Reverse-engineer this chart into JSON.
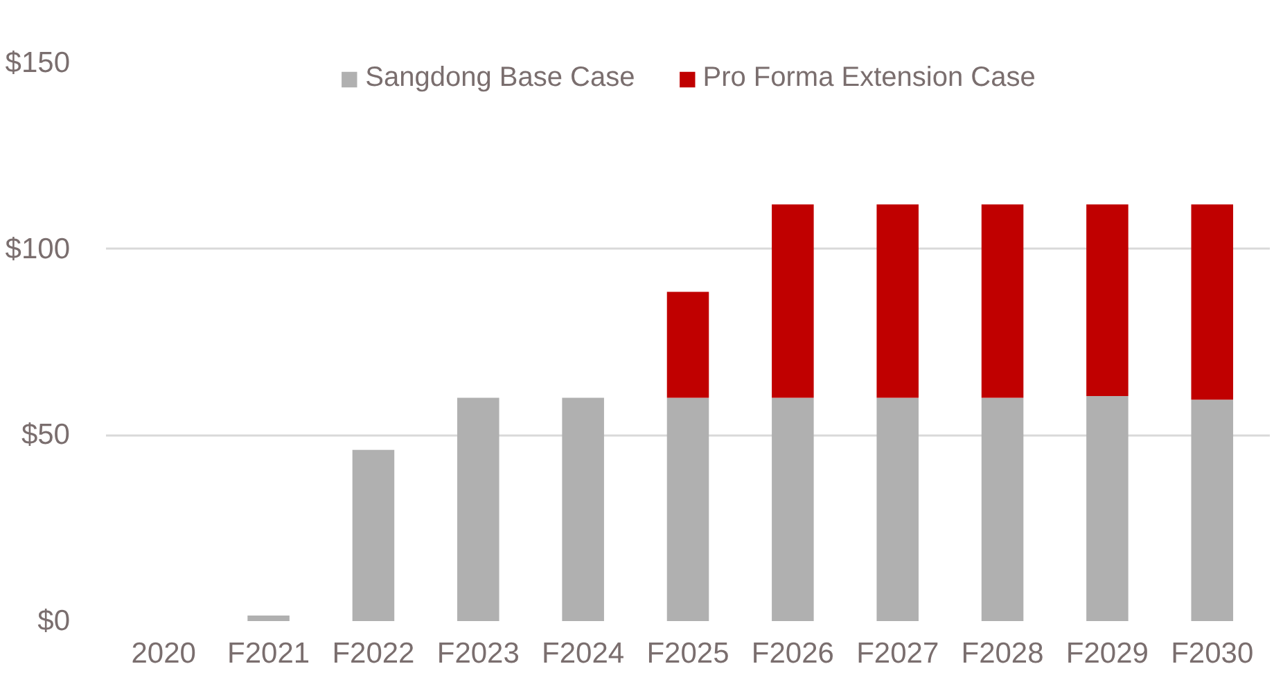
{
  "chart_data": {
    "type": "bar",
    "stacked": true,
    "categories": [
      "2020",
      "F2021",
      "F2022",
      "F2023",
      "F2024",
      "F2025",
      "F2026",
      "F2027",
      "F2028",
      "F2029",
      "F2030"
    ],
    "series": [
      {
        "name": "Sangdong Base Case",
        "color": "#b0b0b0",
        "values": [
          0,
          1.5,
          46,
          60,
          60,
          60,
          60,
          60,
          60,
          60.5,
          59.5
        ]
      },
      {
        "name": "Pro Forma Extension Case",
        "color": "#c00000",
        "values": [
          0,
          0,
          0,
          0,
          0,
          28.5,
          52,
          52,
          52,
          51.5,
          52.5
        ]
      }
    ],
    "ylim": [
      0,
      150
    ],
    "yticks": [
      {
        "value": 0,
        "label": "$0"
      },
      {
        "value": 50,
        "label": "$50"
      },
      {
        "value": 100,
        "label": "$100"
      },
      {
        "value": 150,
        "label": "$150"
      }
    ],
    "grid": "y",
    "legend": "top"
  }
}
